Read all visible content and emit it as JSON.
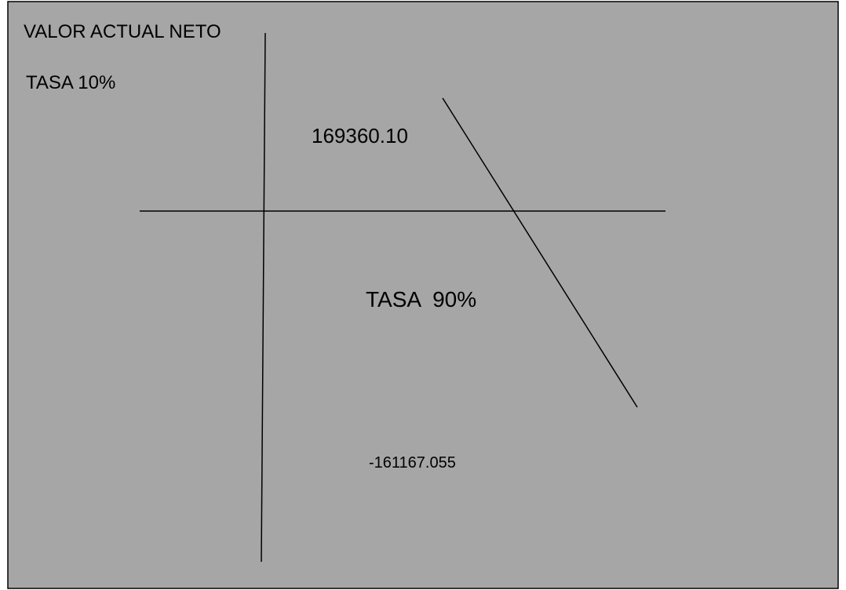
{
  "chart_data": {
    "type": "line",
    "title": "VALOR ACTUAL NETO",
    "annotations": {
      "rate_low_label": "TASA 10%",
      "value_high_label": "169360.10",
      "rate_high_label": "TASA  90%",
      "value_low_label": "-161167.055"
    },
    "series": [
      {
        "x": [
          10,
          90
        ],
        "y": [
          169360.1,
          -161167.055
        ]
      }
    ],
    "grid": false,
    "legend": "none",
    "colors": {
      "background": "#a6a6a6",
      "border": "#000000",
      "line": "#000000",
      "text": "#000000"
    }
  }
}
